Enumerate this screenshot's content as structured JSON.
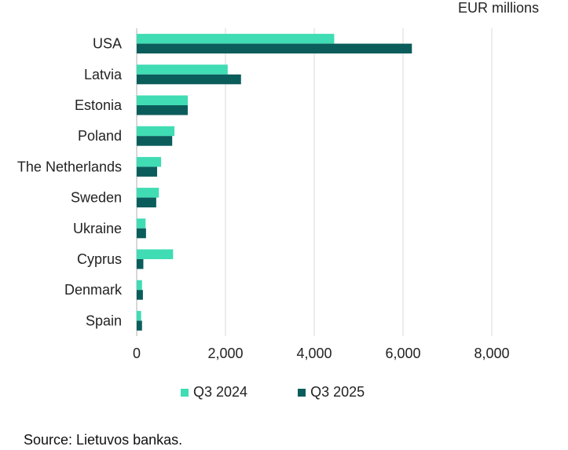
{
  "unit_label": "EUR millions",
  "source": "Source: Lietuvos bankas.",
  "colors": {
    "q3_2024": "#40dcb4",
    "q3_2025": "#0b5d5c",
    "grid": "#d9d9d9",
    "axis": "#bfbfbf"
  },
  "chart_data": {
    "type": "bar",
    "orientation": "horizontal",
    "categories": [
      "USA",
      "Latvia",
      "Estonia",
      "Poland",
      "The Netherlands",
      "Sweden",
      "Ukraine",
      "Cyprus",
      "Denmark",
      "Spain"
    ],
    "series": [
      {
        "name": "Q3 2024",
        "values": [
          4450,
          2050,
          1150,
          850,
          550,
          500,
          200,
          820,
          120,
          100
        ]
      },
      {
        "name": "Q3 2025",
        "values": [
          6200,
          2350,
          1150,
          800,
          460,
          440,
          210,
          150,
          140,
          120
        ]
      }
    ],
    "xlim": [
      0,
      8000
    ],
    "xticks": [
      0,
      2000,
      4000,
      6000,
      8000
    ],
    "xtick_labels": [
      "0",
      "2,000",
      "4,000",
      "6,000",
      "8,000"
    ],
    "grid": "vertical",
    "legend_position": "bottom"
  }
}
